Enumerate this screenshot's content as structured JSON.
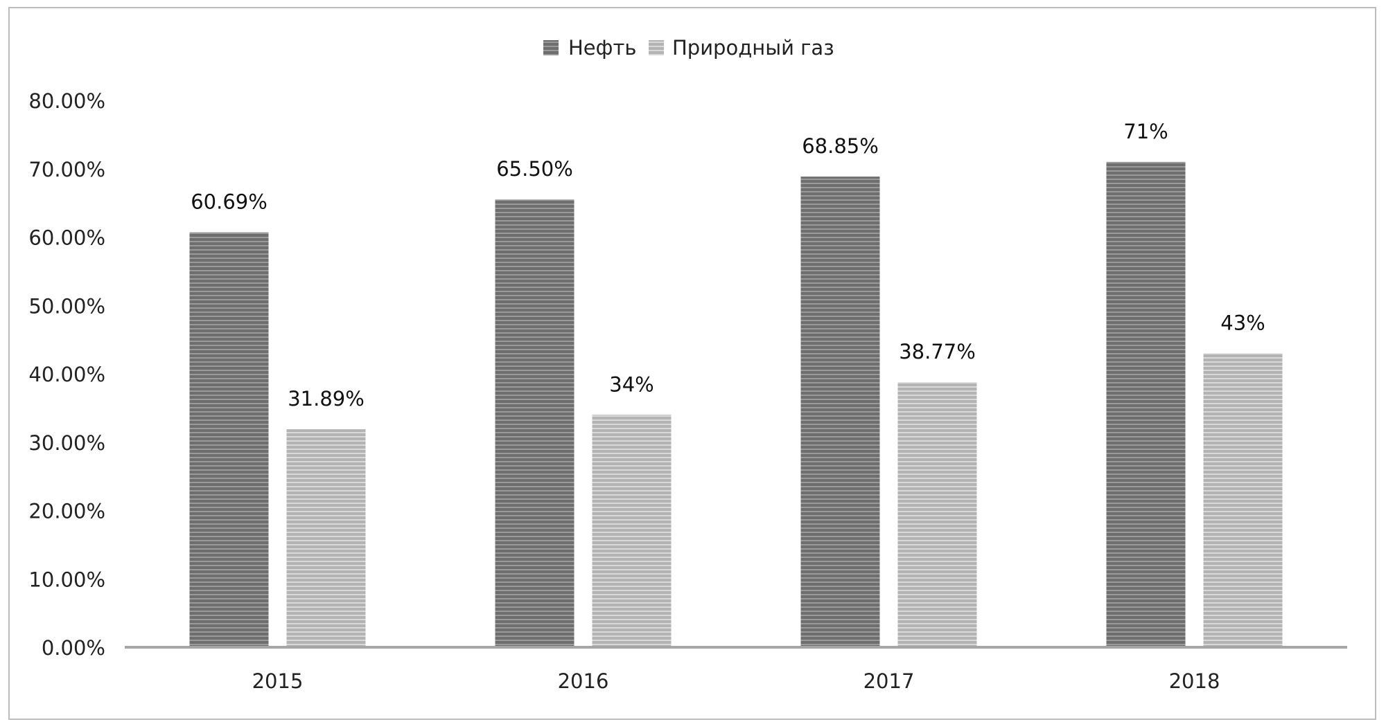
{
  "chart_data": {
    "type": "bar",
    "categories": [
      "2015",
      "2016",
      "2017",
      "2018"
    ],
    "series": [
      {
        "name": "Нефть",
        "values": [
          60.69,
          65.5,
          68.85,
          71
        ],
        "labels": [
          "60.69%",
          "65.50%",
          "68.85%",
          "71%"
        ],
        "color": "#7a7a7a"
      },
      {
        "name": "Природный газ",
        "values": [
          31.89,
          34,
          38.77,
          43
        ],
        "labels": [
          "31.89%",
          "34%",
          "38.77%",
          "43%"
        ],
        "color": "#bdbdbd"
      }
    ],
    "yticks": [
      "0.00%",
      "10.00%",
      "20.00%",
      "30.00%",
      "40.00%",
      "50.00%",
      "60.00%",
      "70.00%",
      "80.00%"
    ],
    "ylim": [
      0,
      80
    ],
    "legend_position": "top-center",
    "grid": false
  }
}
